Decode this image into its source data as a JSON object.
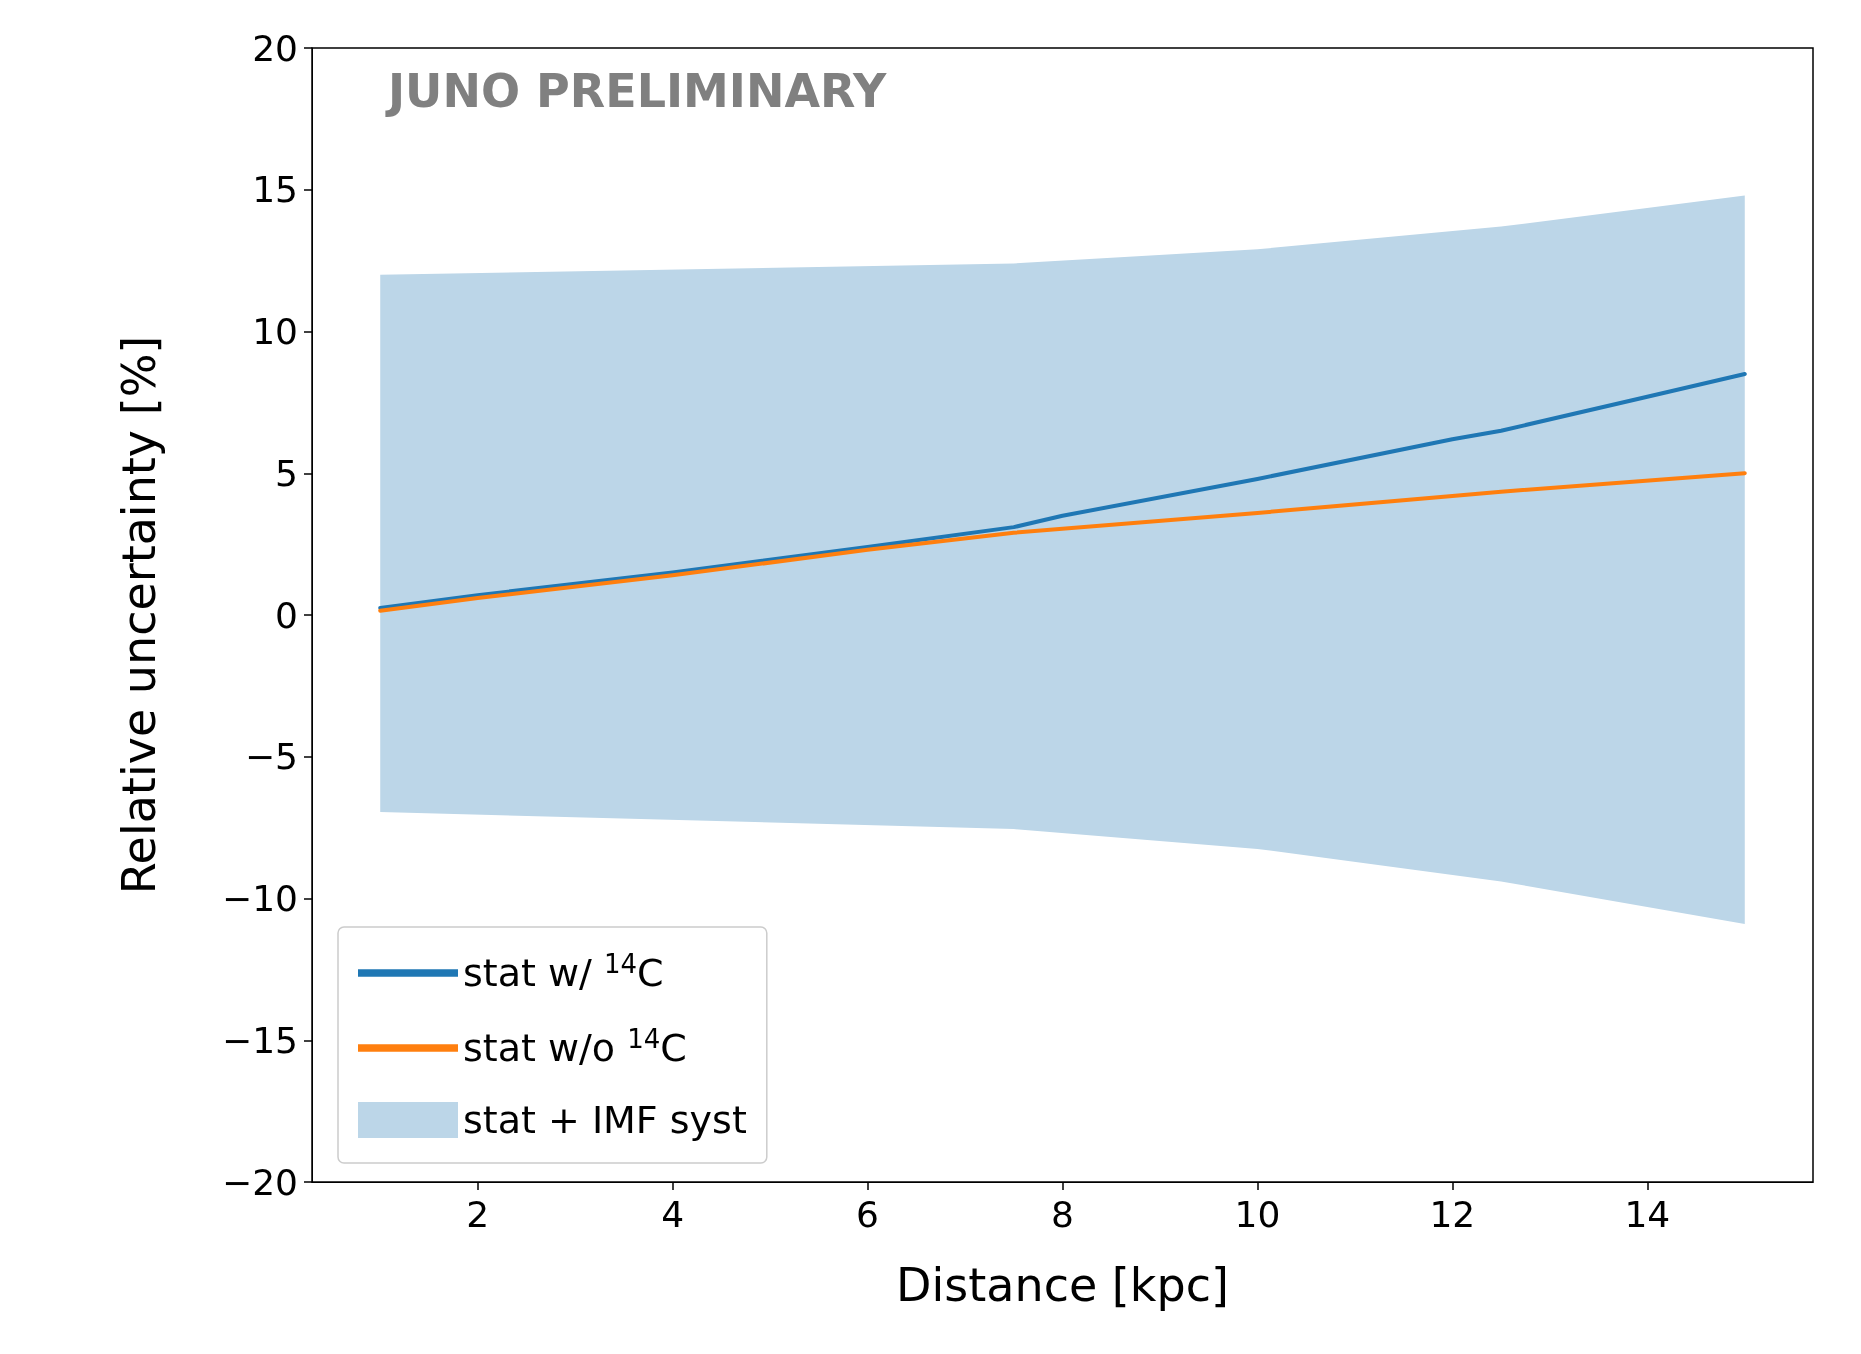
{
  "chart_data": {
    "type": "line",
    "xlabel": "Distance [kpc]",
    "ylabel": "Relative uncertainty [%]",
    "annotations": [
      "JUNO PRELIMINARY"
    ],
    "xlim": [
      0.3,
      15.7
    ],
    "xticks": [
      2,
      4,
      6,
      8,
      10,
      12,
      14
    ],
    "ylim": [
      -20,
      20
    ],
    "yticks": [
      {
        "value": -20,
        "label": "−20"
      },
      {
        "value": -15,
        "label": "−15"
      },
      {
        "value": -10,
        "label": "−10"
      },
      {
        "value": -5,
        "label": "−5"
      },
      0,
      5,
      10,
      15,
      20
    ],
    "grid": false,
    "legend": "bottom left",
    "marker": "none",
    "line_style": "solid",
    "series": [
      {
        "name": "stat w/ $^{14}$C",
        "color": "#1f77b4",
        "x": [
          1,
          2,
          4,
          6,
          7.5,
          8,
          10,
          12,
          12.5,
          14,
          15
        ],
        "values": [
          0.25,
          0.7,
          1.5,
          2.4,
          3.1,
          3.5,
          4.8,
          6.2,
          6.5,
          7.7,
          8.5
        ]
      },
      {
        "name": "stat w/o $^{14}$C",
        "color": "#ff7f0e",
        "x": [
          1,
          2,
          4,
          6,
          7.5,
          10,
          12,
          12.5,
          15
        ],
        "values": [
          0.15,
          0.6,
          1.4,
          2.3,
          2.9,
          3.6,
          4.2,
          4.35,
          5.0
        ]
      },
      {
        "name": "stat + IMF syst",
        "color": "#bcd6e8",
        "x": [
          1,
          7.5,
          10,
          12.5,
          15
        ],
        "values": [
          null,
          null,
          null,
          null,
          null
        ],
        "lower": [
          -6.95,
          -7.55,
          -8.25,
          -9.4,
          -10.9
        ],
        "upper": [
          12.0,
          12.4,
          12.9,
          13.7,
          14.8
        ]
      }
    ]
  }
}
